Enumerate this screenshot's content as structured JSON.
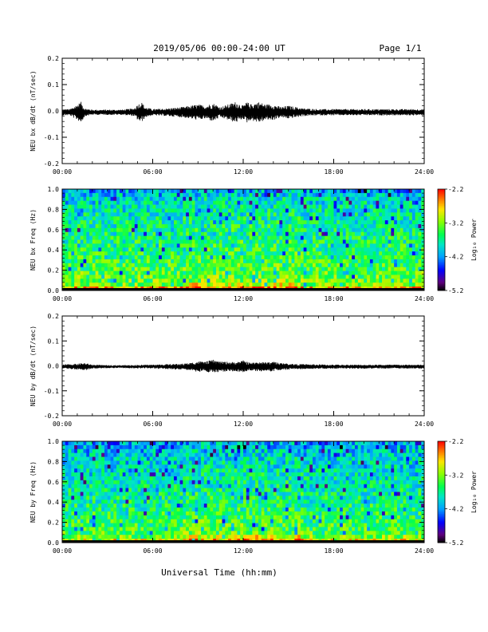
{
  "header": {
    "title": "2019/05/06  00:00-24:00 UT",
    "page": "Page 1/1"
  },
  "footer": {
    "xlabel": "Universal Time (hh:mm)"
  },
  "time_tick_labels": [
    "00:00",
    "06:00",
    "12:00",
    "18:00",
    "24:00"
  ],
  "chart_data": [
    {
      "type": "line",
      "ylabel": "NEU bx dB/dt (nT/sec)",
      "xlim": [
        0,
        24
      ],
      "ylim": [
        -0.2,
        0.2
      ],
      "yticks": [
        "0.2",
        "0.1",
        "0.0",
        "-0.1",
        "-0.2"
      ],
      "series": [
        {
          "color": "#000000",
          "baseline": -0.005,
          "envelope": {
            "x": [
              0,
              0.5,
              1.0,
              1.25,
              1.5,
              2.0,
              3.0,
              4.0,
              4.75,
              5.0,
              5.25,
              5.5,
              6.0,
              7.0,
              8.0,
              8.5,
              9.0,
              9.5,
              10.0,
              10.5,
              11.0,
              11.5,
              12.0,
              12.25,
              12.5,
              13.0,
              13.5,
              14.0,
              14.5,
              15.0,
              16.0,
              17.0,
              18.0,
              19.0,
              20.0,
              21.0,
              22.0,
              24.0
            ],
            "y": [
              0.012,
              0.012,
              0.03,
              0.04,
              0.015,
              0.01,
              0.01,
              0.01,
              0.015,
              0.03,
              0.04,
              0.02,
              0.012,
              0.015,
              0.02,
              0.025,
              0.03,
              0.025,
              0.035,
              0.02,
              0.03,
              0.04,
              0.025,
              0.04,
              0.03,
              0.04,
              0.03,
              0.03,
              0.02,
              0.025,
              0.015,
              0.012,
              0.012,
              0.012,
              0.012,
              0.012,
              0.012,
              0.012
            ]
          }
        }
      ]
    },
    {
      "type": "heatmap",
      "ylabel": "NEU bx Freq (Hz)",
      "xlim": [
        0,
        24
      ],
      "ylim": [
        0.0,
        1.0
      ],
      "yticks": [
        "1.0",
        "0.8",
        "0.6",
        "0.4",
        "0.2",
        "0.0"
      ],
      "colorbar": {
        "label": "Log₁₀ Power",
        "range": [
          -5.2,
          -2.2
        ],
        "ticks": [
          "-2.2",
          "-3.2",
          "-4.2",
          "-5.2"
        ]
      },
      "mean_power": {
        "freq_hz": [
          0.0,
          0.02,
          0.05,
          0.1,
          0.3,
          0.6,
          0.9,
          1.0
        ],
        "log10_power": [
          -5.2,
          -2.6,
          -3.2,
          -3.3,
          -3.5,
          -3.7,
          -3.9,
          -4.2
        ]
      }
    },
    {
      "type": "line",
      "ylabel": "NEU by dB/dt (nT/sec)",
      "xlim": [
        0,
        24
      ],
      "ylim": [
        -0.2,
        0.2
      ],
      "yticks": [
        "0.2",
        "0.1",
        "0.0",
        "-0.1",
        "-0.2"
      ],
      "series": [
        {
          "color": "#000000",
          "baseline": -0.003,
          "envelope": {
            "x": [
              0,
              0.5,
              1.0,
              1.5,
              2.0,
              3.0,
              4.0,
              5.0,
              6.0,
              7.0,
              8.0,
              8.5,
              9.0,
              9.5,
              10.0,
              10.5,
              11.0,
              11.5,
              12.0,
              12.5,
              13.0,
              13.5,
              14.0,
              14.5,
              15.0,
              16.0,
              17.0,
              18.0,
              20.0,
              22.0,
              24.0
            ],
            "y": [
              0.008,
              0.01,
              0.012,
              0.015,
              0.008,
              0.006,
              0.006,
              0.007,
              0.008,
              0.01,
              0.012,
              0.015,
              0.022,
              0.02,
              0.028,
              0.02,
              0.02,
              0.018,
              0.025,
              0.015,
              0.02,
              0.018,
              0.02,
              0.015,
              0.012,
              0.01,
              0.009,
              0.008,
              0.008,
              0.008,
              0.008
            ]
          }
        }
      ]
    },
    {
      "type": "heatmap",
      "ylabel": "NEU by Freq (Hz)",
      "xlim": [
        0,
        24
      ],
      "ylim": [
        0.0,
        1.0
      ],
      "yticks": [
        "1.0",
        "0.8",
        "0.6",
        "0.4",
        "0.2",
        "0.0"
      ],
      "colorbar": {
        "label": "Log₁₀ Power",
        "range": [
          -5.2,
          -2.2
        ],
        "ticks": [
          "-2.2",
          "-3.2",
          "-4.2",
          "-5.2"
        ]
      },
      "mean_power": {
        "freq_hz": [
          0.0,
          0.02,
          0.05,
          0.1,
          0.3,
          0.6,
          0.9,
          1.0
        ],
        "log10_power": [
          -5.2,
          -2.8,
          -3.2,
          -3.4,
          -3.6,
          -3.8,
          -4.0,
          -4.2
        ]
      }
    }
  ]
}
